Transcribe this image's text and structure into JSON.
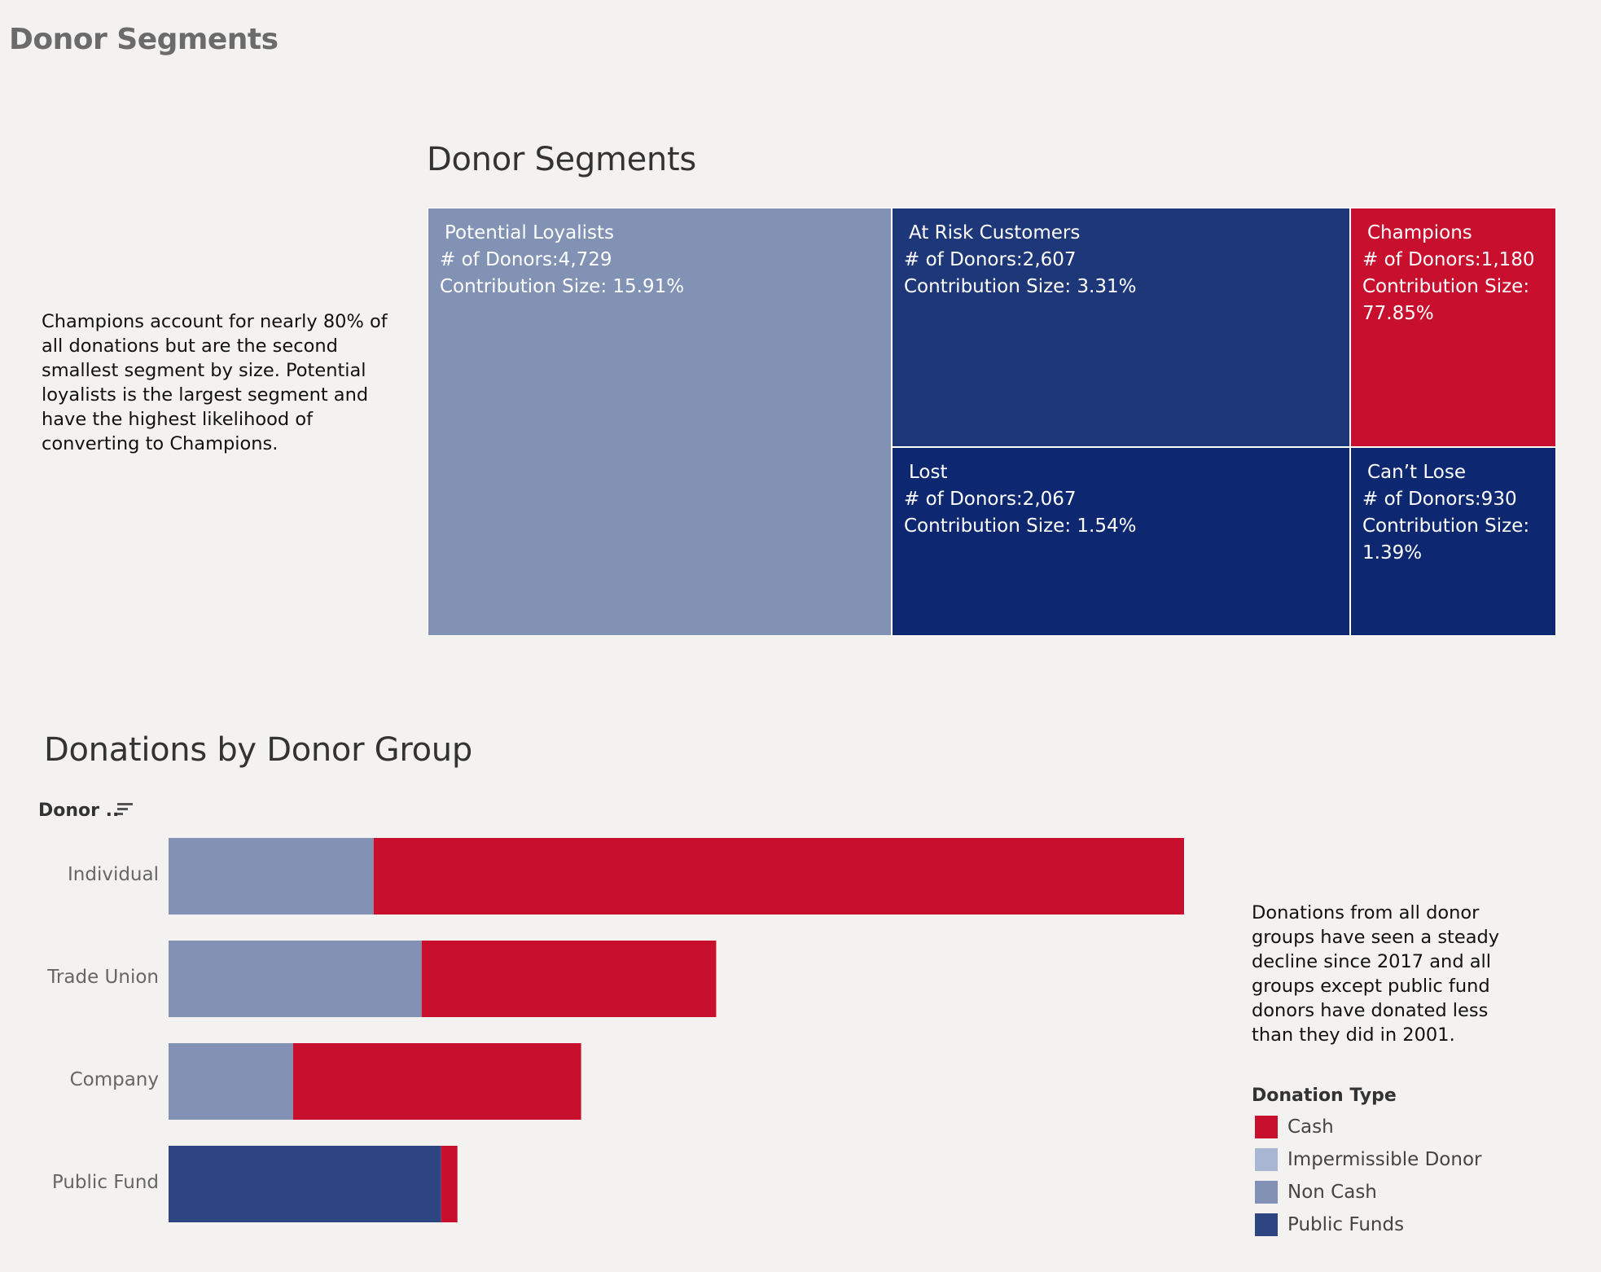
{
  "dashboard": {
    "title": "Donor Segments"
  },
  "notes": {
    "left": "Champions account for nearly 80% of all donations but are the second smallest segment by size. Potential loyalists is the largest segment and have the highest likelihood of converting to Champions.",
    "right": "Donations from all donor groups have seen a steady decline since 2017 and all groups except public fund donors have donated less than they did in 2001."
  },
  "colors": {
    "cash": "#c8102e",
    "impermissible_donor": "#a9b6d3",
    "non_cash": "#8192b5",
    "public_funds": "#2d4682",
    "potential_loyalists": "#8192b5",
    "at_risk": "#1d3779",
    "champions": "#c8102e",
    "lost": "#0d2870",
    "cant_lose": "#0d2870"
  },
  "chart_data": [
    {
      "type": "treemap",
      "title": "Donor Segments",
      "segments": [
        {
          "name": "Potential Loyalists",
          "line1": "# of Donors:4,729",
          "line2": "Contribution Size: 15.91%",
          "line3": "",
          "donors": 4729,
          "contribution_pct": 15.91
        },
        {
          "name": "At Risk Customers",
          "line1": "# of Donors:2,607",
          "line2": "Contribution Size: 3.31%",
          "line3": "",
          "donors": 2607,
          "contribution_pct": 3.31
        },
        {
          "name": "Champions",
          "line1": "# of Donors:1,180",
          "line2": "Contribution Size:",
          "line3": "77.85%",
          "donors": 1180,
          "contribution_pct": 77.85
        },
        {
          "name": "Lost",
          "line1": "# of Donors:2,067",
          "line2": "Contribution Size: 1.54%",
          "line3": "",
          "donors": 2067,
          "contribution_pct": 1.54
        },
        {
          "name": "Can’t Lose",
          "line1": "# of Donors:930",
          "line2": "Contribution Size:",
          "line3": "1.39%",
          "donors": 930,
          "contribution_pct": 1.39
        }
      ]
    },
    {
      "type": "bar",
      "orientation": "horizontal",
      "stacked": true,
      "title": "Donations by Donor Group",
      "row_header": "Donor ..",
      "categories": [
        "Individual",
        "Trade Union",
        "Company",
        "Public Fund"
      ],
      "series": [
        {
          "name": "Non Cash",
          "values": [
            252,
            311,
            153,
            0
          ]
        },
        {
          "name": "Public Funds",
          "values": [
            0,
            0,
            0,
            335
          ]
        },
        {
          "name": "Cash",
          "values": [
            996,
            362,
            354,
            20
          ]
        }
      ],
      "xlim": [
        0,
        1248
      ],
      "legend": {
        "title": "Donation Type",
        "position": "right",
        "items": [
          "Cash",
          "Impermissible Donor",
          "Non Cash",
          "Public Funds"
        ]
      }
    }
  ]
}
